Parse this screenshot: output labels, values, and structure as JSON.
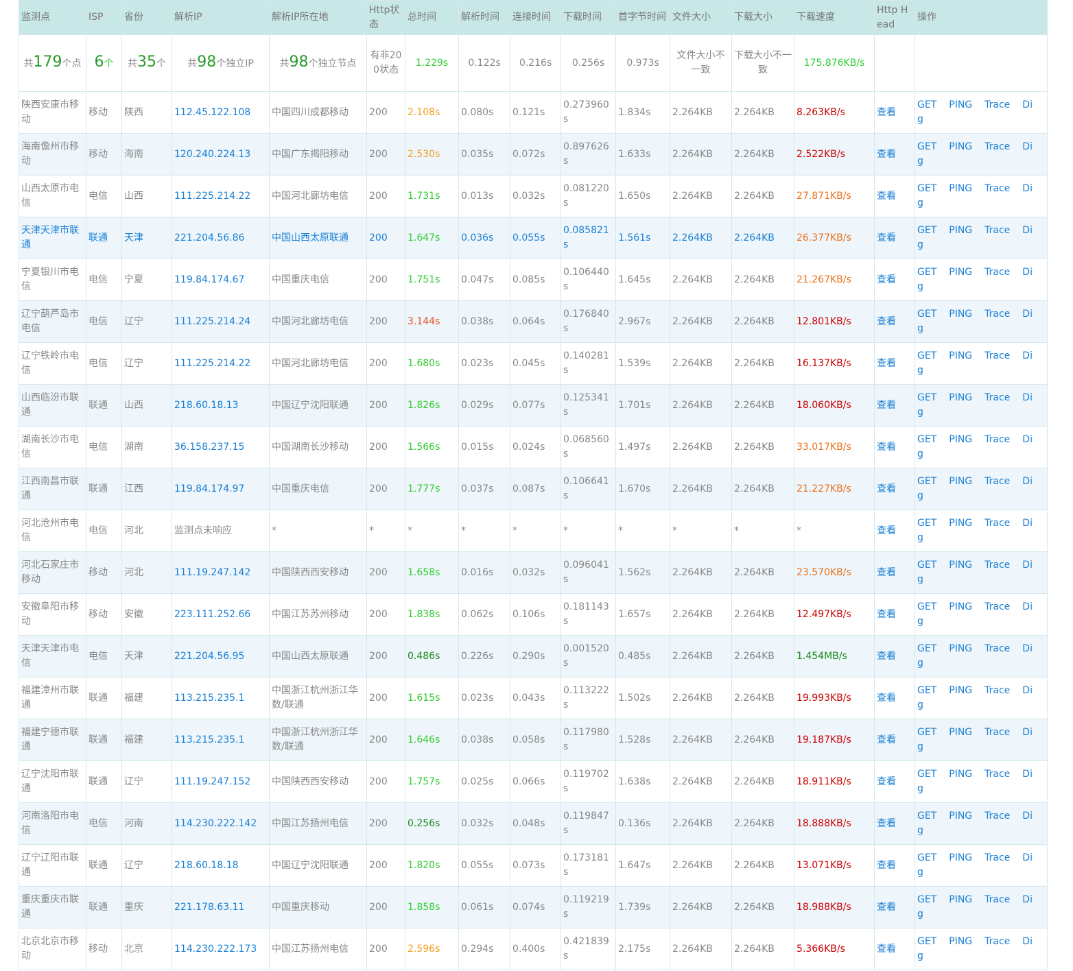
{
  "table": {
    "headers": [
      "监测点",
      "ISP",
      "省份",
      "解析IP",
      "解析IP所在地",
      "Http状态",
      "总时间",
      "解析时间",
      "连接时间",
      "下载时间",
      "首字节时间",
      "文件大小",
      "下载大小",
      "下载速度",
      "Http Head",
      "操作"
    ],
    "summary": [
      [
        "共",
        "179",
        "个点"
      ],
      [
        "6",
        "个"
      ],
      [
        "共",
        "35",
        "个"
      ],
      [
        "共",
        "98",
        "个独立IP"
      ],
      [
        "共",
        "98",
        "个独立节点"
      ],
      "有非200状态",
      "1.229s",
      "0.122s",
      "0.216s",
      "0.256s",
      "0.973s",
      "文件大小不一致",
      "下载大小不一致",
      "175.876KB/s"
    ],
    "actions": [
      "查看",
      "GET",
      "PING",
      "Trace",
      "Dig"
    ],
    "rows": [
      {
        "cells": [
          "陕西安康市移动",
          "移动",
          "陕西",
          "112.45.122.108",
          "中国四川成都移动",
          "200",
          "2.108s",
          "0.080s",
          "0.121s",
          "0.273960s",
          "1.834s",
          "2.264KB",
          "2.264KB",
          "8.263KB/s"
        ],
        "total_color": "#f0a020",
        "speed_color": "#cc0000"
      },
      {
        "cells": [
          "海南儋州市移动",
          "移动",
          "海南",
          "120.240.224.13",
          "中国广东揭阳移动",
          "200",
          "2.530s",
          "0.035s",
          "0.072s",
          "0.897626s",
          "1.633s",
          "2.264KB",
          "2.264KB",
          "2.522KB/s"
        ],
        "total_color": "#f0a020",
        "speed_color": "#cc0000"
      },
      {
        "cells": [
          "山西太原市电信",
          "电信",
          "山西",
          "111.225.214.22",
          "中国河北廊坊电信",
          "200",
          "1.731s",
          "0.013s",
          "0.032s",
          "0.081220s",
          "1.650s",
          "2.264KB",
          "2.264KB",
          "27.871KB/s"
        ],
        "total_color": "#33cc33",
        "speed_color": "#e8701a"
      },
      {
        "cells": [
          "天津天津市联通",
          "联通",
          "天津",
          "221.204.56.86",
          "中国山西太原联通",
          "200",
          "1.647s",
          "0.036s",
          "0.055s",
          "0.085821s",
          "1.561s",
          "2.264KB",
          "2.264KB",
          "26.377KB/s"
        ],
        "total_color": "#33cc33",
        "speed_color": "#e8701a",
        "text_color": "#1a7fd4"
      },
      {
        "cells": [
          "宁夏银川市电信",
          "电信",
          "宁夏",
          "119.84.174.67",
          "中国重庆电信",
          "200",
          "1.751s",
          "0.047s",
          "0.085s",
          "0.106440s",
          "1.645s",
          "2.264KB",
          "2.264KB",
          "21.267KB/s"
        ],
        "total_color": "#33cc33",
        "speed_color": "#e8701a"
      },
      {
        "cells": [
          "辽宁葫芦岛市电信",
          "电信",
          "辽宁",
          "111.225.214.24",
          "中国河北廊坊电信",
          "200",
          "3.144s",
          "0.038s",
          "0.064s",
          "0.176840s",
          "2.967s",
          "2.264KB",
          "2.264KB",
          "12.801KB/s"
        ],
        "total_color": "#e85020",
        "speed_color": "#cc0000"
      },
      {
        "cells": [
          "辽宁铁岭市电信",
          "电信",
          "辽宁",
          "111.225.214.22",
          "中国河北廊坊电信",
          "200",
          "1.680s",
          "0.023s",
          "0.045s",
          "0.140281s",
          "1.539s",
          "2.264KB",
          "2.264KB",
          "16.137KB/s"
        ],
        "total_color": "#33cc33",
        "speed_color": "#cc0000"
      },
      {
        "cells": [
          "山西临汾市联通",
          "联通",
          "山西",
          "218.60.18.13",
          "中国辽宁沈阳联通",
          "200",
          "1.826s",
          "0.029s",
          "0.077s",
          "0.125341s",
          "1.701s",
          "2.264KB",
          "2.264KB",
          "18.060KB/s"
        ],
        "total_color": "#33cc33",
        "speed_color": "#cc0000"
      },
      {
        "cells": [
          "湖南长沙市电信",
          "电信",
          "湖南",
          "36.158.237.15",
          "中国湖南长沙移动",
          "200",
          "1.566s",
          "0.015s",
          "0.024s",
          "0.068560s",
          "1.497s",
          "2.264KB",
          "2.264KB",
          "33.017KB/s"
        ],
        "total_color": "#33cc33",
        "speed_color": "#e8701a"
      },
      {
        "cells": [
          "江西南昌市联通",
          "联通",
          "江西",
          "119.84.174.97",
          "中国重庆电信",
          "200",
          "1.777s",
          "0.037s",
          "0.087s",
          "0.106641s",
          "1.670s",
          "2.264KB",
          "2.264KB",
          "21.227KB/s"
        ],
        "total_color": "#33cc33",
        "speed_color": "#e8701a"
      },
      {
        "cells": [
          "河北沧州市电信",
          "电信",
          "河北",
          "监测点未响应",
          "*",
          "*",
          "*",
          "*",
          "*",
          "*",
          "*",
          "*",
          "*",
          "*"
        ]
      },
      {
        "cells": [
          "河北石家庄市移动",
          "移动",
          "河北",
          "111.19.247.142",
          "中国陕西西安移动",
          "200",
          "1.658s",
          "0.016s",
          "0.032s",
          "0.096041s",
          "1.562s",
          "2.264KB",
          "2.264KB",
          "23.570KB/s"
        ],
        "total_color": "#33cc33",
        "speed_color": "#e8701a"
      },
      {
        "cells": [
          "安徽阜阳市移动",
          "移动",
          "安徽",
          "223.111.252.66",
          "中国江苏苏州移动",
          "200",
          "1.838s",
          "0.062s",
          "0.106s",
          "0.181143s",
          "1.657s",
          "2.264KB",
          "2.264KB",
          "12.497KB/s"
        ],
        "total_color": "#33cc33",
        "speed_color": "#cc0000"
      },
      {
        "cells": [
          "天津天津市电信",
          "电信",
          "天津",
          "221.204.56.95",
          "中国山西太原联通",
          "200",
          "0.486s",
          "0.226s",
          "0.290s",
          "0.001520s",
          "0.485s",
          "2.264KB",
          "2.264KB",
          "1.454MB/s"
        ],
        "total_color": "#1d8a1d",
        "speed_color": "#1d8a1d"
      },
      {
        "cells": [
          "福建漳州市联通",
          "联通",
          "福建",
          "113.215.235.1",
          "中国浙江杭州浙江华数/联通",
          "200",
          "1.615s",
          "0.023s",
          "0.043s",
          "0.113222s",
          "1.502s",
          "2.264KB",
          "2.264KB",
          "19.993KB/s"
        ],
        "total_color": "#33cc33",
        "speed_color": "#cc0000"
      },
      {
        "cells": [
          "福建宁德市联通",
          "联通",
          "福建",
          "113.215.235.1",
          "中国浙江杭州浙江华数/联通",
          "200",
          "1.646s",
          "0.038s",
          "0.058s",
          "0.117980s",
          "1.528s",
          "2.264KB",
          "2.264KB",
          "19.187KB/s"
        ],
        "total_color": "#33cc33",
        "speed_color": "#cc0000"
      },
      {
        "cells": [
          "辽宁沈阳市联通",
          "联通",
          "辽宁",
          "111.19.247.152",
          "中国陕西西安移动",
          "200",
          "1.757s",
          "0.025s",
          "0.066s",
          "0.119702s",
          "1.638s",
          "2.264KB",
          "2.264KB",
          "18.911KB/s"
        ],
        "total_color": "#33cc33",
        "speed_color": "#cc0000"
      },
      {
        "cells": [
          "河南洛阳市电信",
          "电信",
          "河南",
          "114.230.222.142",
          "中国江苏扬州电信",
          "200",
          "0.256s",
          "0.032s",
          "0.048s",
          "0.119847s",
          "0.136s",
          "2.264KB",
          "2.264KB",
          "18.888KB/s"
        ],
        "total_color": "#1d8a1d",
        "speed_color": "#cc0000"
      },
      {
        "cells": [
          "辽宁辽阳市联通",
          "联通",
          "辽宁",
          "218.60.18.18",
          "中国辽宁沈阳联通",
          "200",
          "1.820s",
          "0.055s",
          "0.073s",
          "0.173181s",
          "1.647s",
          "2.264KB",
          "2.264KB",
          "13.071KB/s"
        ],
        "total_color": "#33cc33",
        "speed_color": "#cc0000"
      },
      {
        "cells": [
          "重庆重庆市联通",
          "联通",
          "重庆",
          "221.178.63.11",
          "中国重庆移动",
          "200",
          "1.858s",
          "0.061s",
          "0.074s",
          "0.119219s",
          "1.739s",
          "2.264KB",
          "2.264KB",
          "18.988KB/s"
        ],
        "total_color": "#33cc33",
        "speed_color": "#cc0000"
      },
      {
        "cells": [
          "北京北京市移动",
          "移动",
          "北京",
          "114.230.222.173",
          "中国江苏扬州电信",
          "200",
          "2.596s",
          "0.294s",
          "0.400s",
          "0.421839s",
          "2.175s",
          "2.264KB",
          "2.264KB",
          "5.366KB/s"
        ],
        "total_color": "#f0a020",
        "speed_color": "#cc0000"
      }
    ]
  }
}
